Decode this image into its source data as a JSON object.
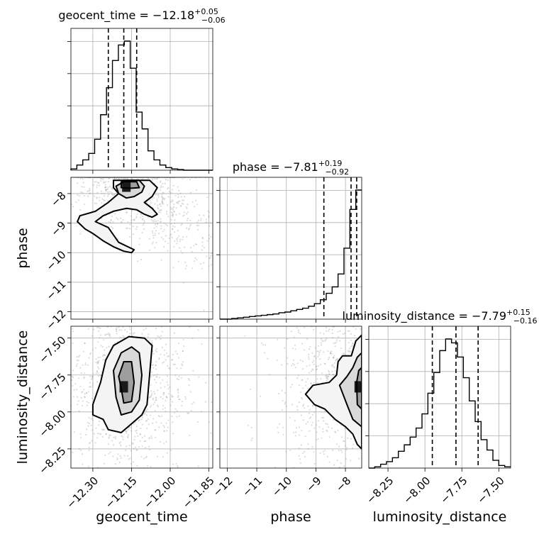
{
  "chart_data": {
    "type": "corner",
    "parameters": [
      {
        "name": "geocent_time",
        "axis_label": "geocent_time",
        "range": [
          -12.385,
          -11.835
        ],
        "ticks": [
          -12.3,
          -12.15,
          -12.0,
          -11.85
        ],
        "tick_labels": [
          "−12.30",
          "−12.15",
          "−12.00",
          "−11.85"
        ],
        "title": {
          "prefix": "geocent_time = ",
          "value": "−12.18",
          "plus": "+0.05",
          "minus": "−0.06"
        },
        "quantiles": [
          -12.24,
          -12.18,
          -12.13
        ],
        "histogram": {
          "bin_edges": [
            -12.385,
            -12.362,
            -12.339,
            -12.316,
            -12.293,
            -12.27,
            -12.247,
            -12.224,
            -12.201,
            -12.178,
            -12.155,
            -12.132,
            -12.109,
            -12.086,
            -12.063,
            -12.04,
            -12.017,
            -11.994,
            -11.971,
            -11.948,
            -11.925,
            -11.902,
            -11.879,
            -11.856,
            -11.835
          ],
          "counts": [
            0.01,
            0.04,
            0.08,
            0.13,
            0.24,
            0.43,
            0.64,
            0.85,
            0.97,
            1.0,
            0.79,
            0.45,
            0.32,
            0.15,
            0.08,
            0.04,
            0.02,
            0.01,
            0.005,
            0.0,
            0.0,
            0.0,
            0.0,
            0.0
          ]
        }
      },
      {
        "name": "phase",
        "axis_label": "phase",
        "range": [
          -12.25,
          -7.45
        ],
        "ticks": [
          -12,
          -11,
          -10,
          -9,
          -8
        ],
        "tick_labels": [
          "−12",
          "−11",
          "−10",
          "−9",
          "−8"
        ],
        "title": {
          "prefix": "phase = ",
          "value": "−7.81",
          "plus": "+0.19",
          "minus": "−0.92"
        },
        "quantiles": [
          -8.73,
          -7.81,
          -7.62
        ],
        "histogram": {
          "bin_edges": [
            -12.25,
            -12.05,
            -11.85,
            -11.65,
            -11.45,
            -11.25,
            -11.05,
            -10.85,
            -10.65,
            -10.45,
            -10.25,
            -10.05,
            -9.85,
            -9.65,
            -9.45,
            -9.25,
            -9.05,
            -8.85,
            -8.65,
            -8.45,
            -8.25,
            -8.05,
            -7.85,
            -7.65,
            -7.45
          ],
          "counts": [
            0.0,
            0.0,
            0.005,
            0.01,
            0.015,
            0.02,
            0.025,
            0.03,
            0.035,
            0.04,
            0.05,
            0.055,
            0.065,
            0.075,
            0.085,
            0.1,
            0.12,
            0.15,
            0.2,
            0.25,
            0.35,
            0.55,
            0.85,
            1.0
          ]
        }
      },
      {
        "name": "luminosity_distance",
        "axis_label": "luminosity_distance",
        "range": [
          -8.38,
          -7.42
        ],
        "ticks": [
          -8.25,
          -8.0,
          -7.75,
          -7.5
        ],
        "tick_labels": [
          "−8.25",
          "−8.00",
          "−7.75",
          "−7.50"
        ],
        "title": {
          "prefix": "luminosity_distance = ",
          "value": "−7.79",
          "plus": "+0.15",
          "minus": "−0.16"
        },
        "quantiles": [
          -7.95,
          -7.79,
          -7.64
        ],
        "histogram": {
          "bin_edges": [
            -8.38,
            -8.34,
            -8.3,
            -8.26,
            -8.22,
            -8.18,
            -8.14,
            -8.1,
            -8.06,
            -8.02,
            -7.98,
            -7.94,
            -7.9,
            -7.86,
            -7.82,
            -7.78,
            -7.74,
            -7.7,
            -7.66,
            -7.62,
            -7.58,
            -7.54,
            -7.5,
            -7.46,
            -7.42
          ],
          "counts": [
            0.0,
            0.01,
            0.03,
            0.05,
            0.08,
            0.13,
            0.18,
            0.24,
            0.31,
            0.42,
            0.58,
            0.74,
            0.91,
            1.0,
            0.97,
            0.86,
            0.7,
            0.52,
            0.36,
            0.22,
            0.14,
            0.06,
            0.02,
            0.01
          ]
        }
      }
    ],
    "pairs": [
      {
        "x": "geocent_time",
        "y": "phase",
        "peak": [
          -12.17,
          -7.75
        ],
        "contours": [
          [
            [
              -12.22,
              -7.55
            ],
            [
              -12.22,
              -7.8
            ],
            [
              -12.2,
              -8.0
            ],
            [
              -12.24,
              -8.3
            ],
            [
              -12.29,
              -8.6
            ],
            [
              -12.35,
              -8.75
            ],
            [
              -12.36,
              -8.95
            ],
            [
              -12.33,
              -9.2
            ],
            [
              -12.3,
              -9.35
            ],
            [
              -12.26,
              -9.6
            ],
            [
              -12.22,
              -9.8
            ],
            [
              -12.18,
              -9.95
            ],
            [
              -12.15,
              -10.0
            ],
            [
              -12.14,
              -9.9
            ],
            [
              -12.2,
              -9.65
            ],
            [
              -12.22,
              -9.4
            ],
            [
              -12.24,
              -9.15
            ],
            [
              -12.29,
              -8.95
            ],
            [
              -12.26,
              -8.75
            ],
            [
              -12.22,
              -8.6
            ],
            [
              -12.17,
              -8.5
            ],
            [
              -12.13,
              -8.55
            ],
            [
              -12.1,
              -8.7
            ],
            [
              -12.07,
              -8.8
            ],
            [
              -12.05,
              -8.7
            ],
            [
              -12.07,
              -8.5
            ],
            [
              -12.1,
              -8.3
            ],
            [
              -12.07,
              -8.1
            ],
            [
              -12.05,
              -7.8
            ],
            [
              -12.08,
              -7.55
            ]
          ],
          [
            [
              -12.17,
              -7.55
            ],
            [
              -12.21,
              -7.75
            ],
            [
              -12.2,
              -8.0
            ],
            [
              -12.17,
              -8.15
            ],
            [
              -12.14,
              -8.1
            ],
            [
              -12.11,
              -7.95
            ],
            [
              -12.1,
              -7.75
            ],
            [
              -12.12,
              -7.55
            ]
          ],
          [
            [
              -12.19,
              -7.6
            ],
            [
              -12.19,
              -7.8
            ],
            [
              -12.15,
              -7.82
            ],
            [
              -12.12,
              -7.8
            ],
            [
              -12.13,
              -7.6
            ]
          ]
        ]
      },
      {
        "x": "geocent_time",
        "y": "luminosity_distance",
        "peak": [
          -12.18,
          -7.83
        ],
        "contours": [
          [
            [
              -12.26,
              -8.05
            ],
            [
              -12.24,
              -8.12
            ],
            [
              -12.19,
              -8.14
            ],
            [
              -12.15,
              -8.08
            ],
            [
              -12.11,
              -8.02
            ],
            [
              -12.09,
              -7.95
            ],
            [
              -12.08,
              -7.75
            ],
            [
              -12.07,
              -7.55
            ],
            [
              -12.1,
              -7.5
            ],
            [
              -12.16,
              -7.49
            ],
            [
              -12.22,
              -7.55
            ],
            [
              -12.25,
              -7.65
            ],
            [
              -12.27,
              -7.8
            ],
            [
              -12.3,
              -7.95
            ],
            [
              -12.3,
              -8.02
            ]
          ],
          [
            [
              -12.21,
              -7.9
            ],
            [
              -12.19,
              -8.02
            ],
            [
              -12.15,
              -8.0
            ],
            [
              -12.12,
              -7.92
            ],
            [
              -12.11,
              -7.75
            ],
            [
              -12.12,
              -7.6
            ],
            [
              -12.15,
              -7.56
            ],
            [
              -12.19,
              -7.6
            ],
            [
              -12.22,
              -7.72
            ]
          ],
          [
            [
              -12.19,
              -7.84
            ],
            [
              -12.18,
              -7.94
            ],
            [
              -12.15,
              -7.93
            ],
            [
              -12.14,
              -7.8
            ],
            [
              -12.15,
              -7.66
            ],
            [
              -12.18,
              -7.66
            ],
            [
              -12.2,
              -7.76
            ]
          ]
        ]
      },
      {
        "x": "phase",
        "y": "luminosity_distance",
        "peak": [
          -7.55,
          -7.83
        ],
        "contours": [
          [
            [
              -7.45,
              -7.48
            ],
            [
              -7.65,
              -7.52
            ],
            [
              -7.8,
              -7.62
            ],
            [
              -8.1,
              -7.62
            ],
            [
              -8.25,
              -7.66
            ],
            [
              -8.3,
              -7.75
            ],
            [
              -8.55,
              -7.8
            ],
            [
              -9.1,
              -7.82
            ],
            [
              -9.35,
              -7.88
            ],
            [
              -9.05,
              -7.95
            ],
            [
              -8.7,
              -7.98
            ],
            [
              -8.35,
              -8.05
            ],
            [
              -8.0,
              -8.1
            ],
            [
              -7.75,
              -8.15
            ],
            [
              -7.6,
              -8.22
            ],
            [
              -7.45,
              -8.25
            ]
          ],
          [
            [
              -7.45,
              -7.6
            ],
            [
              -7.6,
              -7.63
            ],
            [
              -7.75,
              -7.7
            ],
            [
              -7.95,
              -7.76
            ],
            [
              -8.2,
              -7.82
            ],
            [
              -7.95,
              -7.95
            ],
            [
              -7.75,
              -8.05
            ],
            [
              -7.45,
              -8.1
            ]
          ],
          [
            [
              -7.45,
              -7.7
            ],
            [
              -7.55,
              -7.72
            ],
            [
              -7.62,
              -7.8
            ],
            [
              -7.6,
              -7.95
            ],
            [
              -7.45,
              -7.98
            ]
          ]
        ]
      }
    ]
  }
}
